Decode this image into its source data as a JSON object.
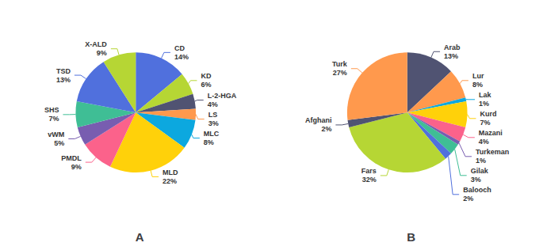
{
  "chart_data": [
    {
      "type": "pie",
      "title": "A",
      "categories": [
        "CD",
        "KD",
        "L-2-HGA",
        "LS",
        "MLC",
        "MLD",
        "PMDL",
        "vWM",
        "SHS",
        "TSD",
        "X-ALD"
      ],
      "values": [
        14,
        6,
        4,
        3,
        8,
        22,
        9,
        5,
        7,
        13,
        9
      ],
      "value_labels": [
        "14%",
        "6%",
        "4%",
        "3%",
        "8%",
        "22%",
        "9%",
        "5%",
        "7%",
        "13%",
        "9%"
      ],
      "data_labels": true
    },
    {
      "type": "pie",
      "title": "B",
      "categories": [
        "Arab",
        "Lur",
        "Lak",
        "Kurd",
        "Mazani",
        "Turkeman",
        "Gilak",
        "Balooch",
        "Fars",
        "Afghani",
        "Turk"
      ],
      "values": [
        13,
        8,
        1,
        7,
        4,
        1,
        3,
        2,
        32,
        2,
        27
      ],
      "value_labels": [
        "13%",
        "8%",
        "1%",
        "7%",
        "4%",
        "1%",
        "3%",
        "2%",
        "32%",
        "2%",
        "27%"
      ],
      "data_labels": true
    }
  ]
}
